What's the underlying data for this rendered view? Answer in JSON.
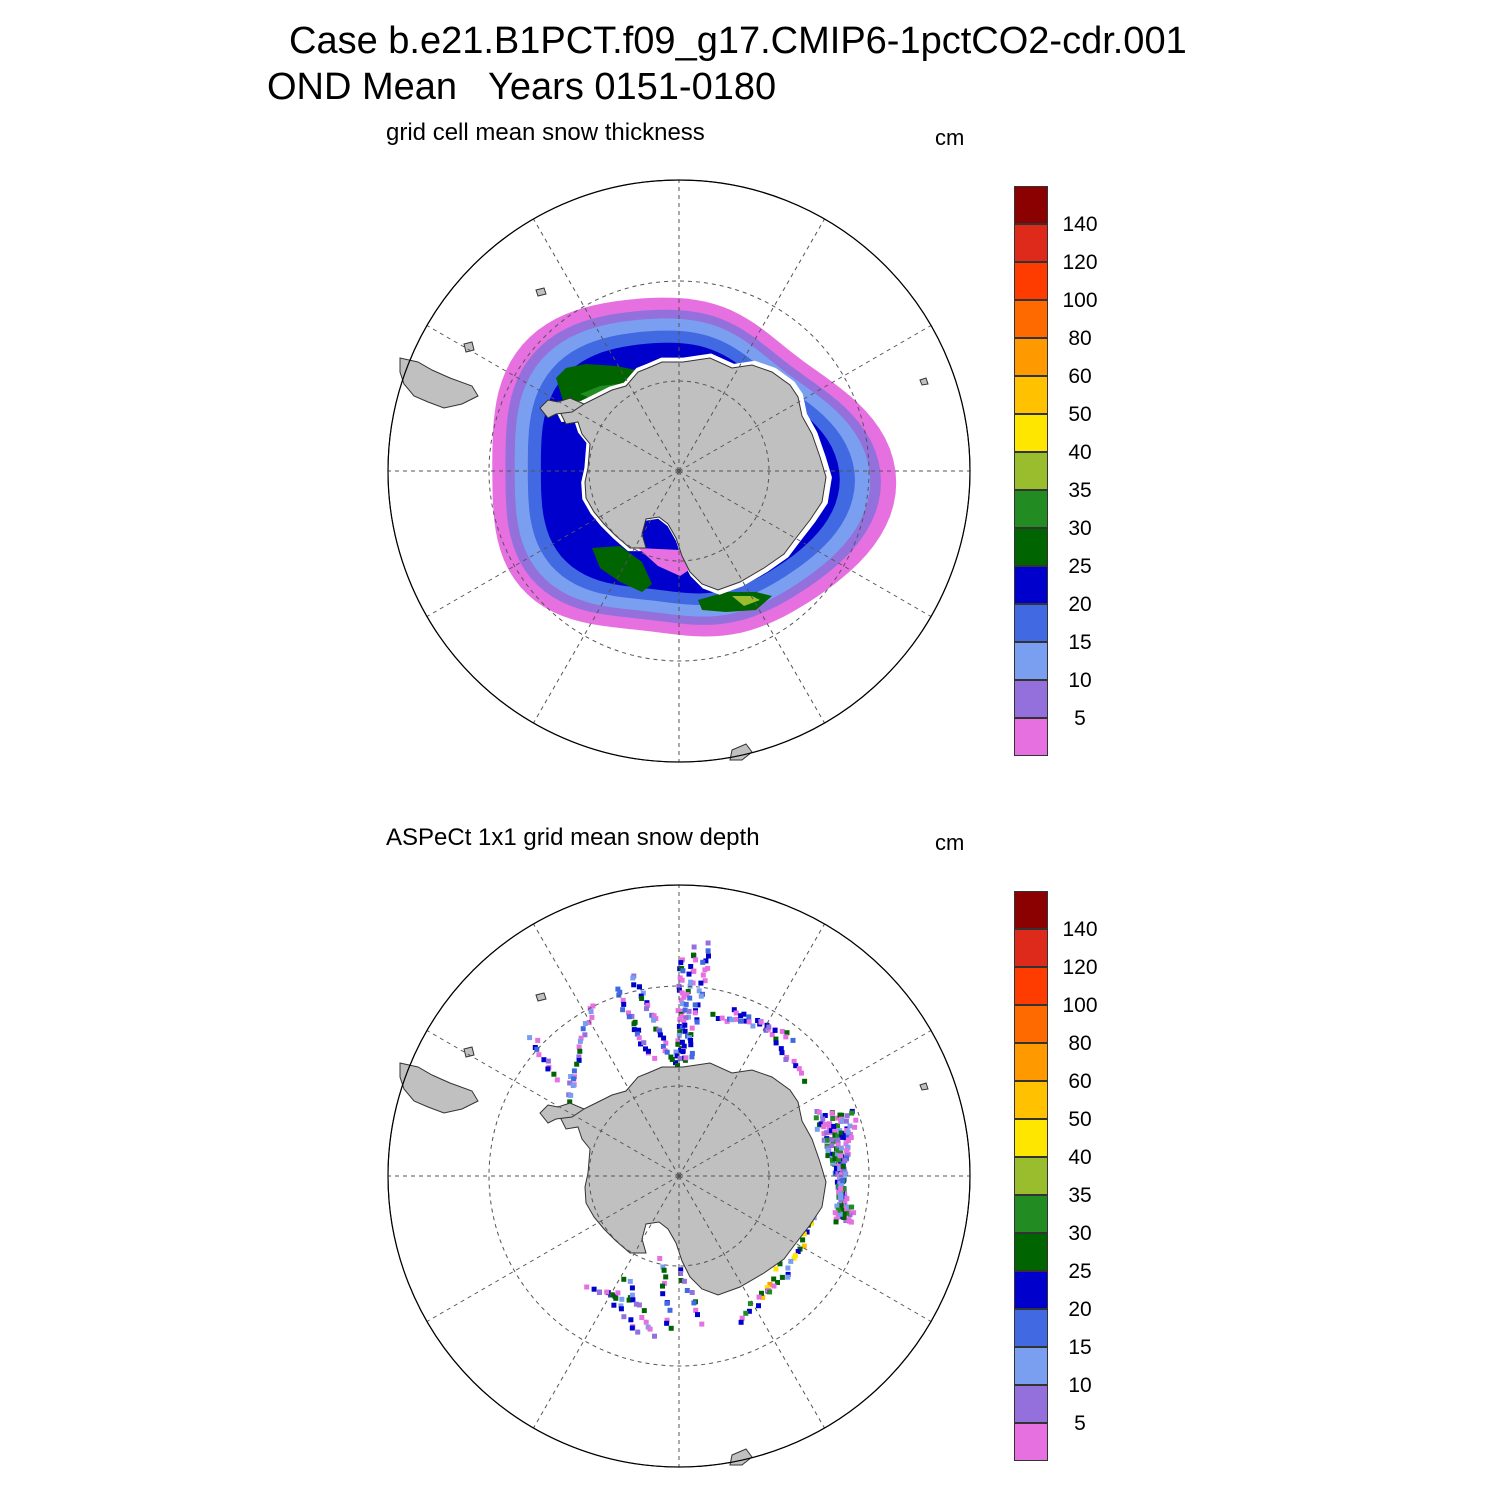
{
  "header": {
    "line1": "Case b.e21.B1PCT.f09_g17.CMIP6-1pctCO2-cdr.001",
    "line2": "OND Mean   Years 0151-0180"
  },
  "panels": [
    {
      "title": "grid cell mean snow thickness",
      "units": "cm",
      "field": "model"
    },
    {
      "title": "ASPeCt 1x1 grid mean snow depth",
      "units": "cm",
      "field": "observations"
    }
  ],
  "colorbar": {
    "labels": [
      "140",
      "120",
      "100",
      "80",
      "60",
      "50",
      "40",
      "35",
      "30",
      "25",
      "20",
      "15",
      "10",
      "5"
    ],
    "colors_top_to_bottom": [
      "#8b0000",
      "#dd2a1a",
      "#ff3c00",
      "#ff6a00",
      "#ff9900",
      "#ffc100",
      "#ffe600",
      "#9abd2e",
      "#228b22",
      "#006400",
      "#0000cd",
      "#4169e1",
      "#7b9ff0",
      "#9370db",
      "#e670e0"
    ]
  },
  "map_style": {
    "land": "#c0c0c0",
    "grid_line": "#555555",
    "projection": "South Polar Stereographic"
  }
}
